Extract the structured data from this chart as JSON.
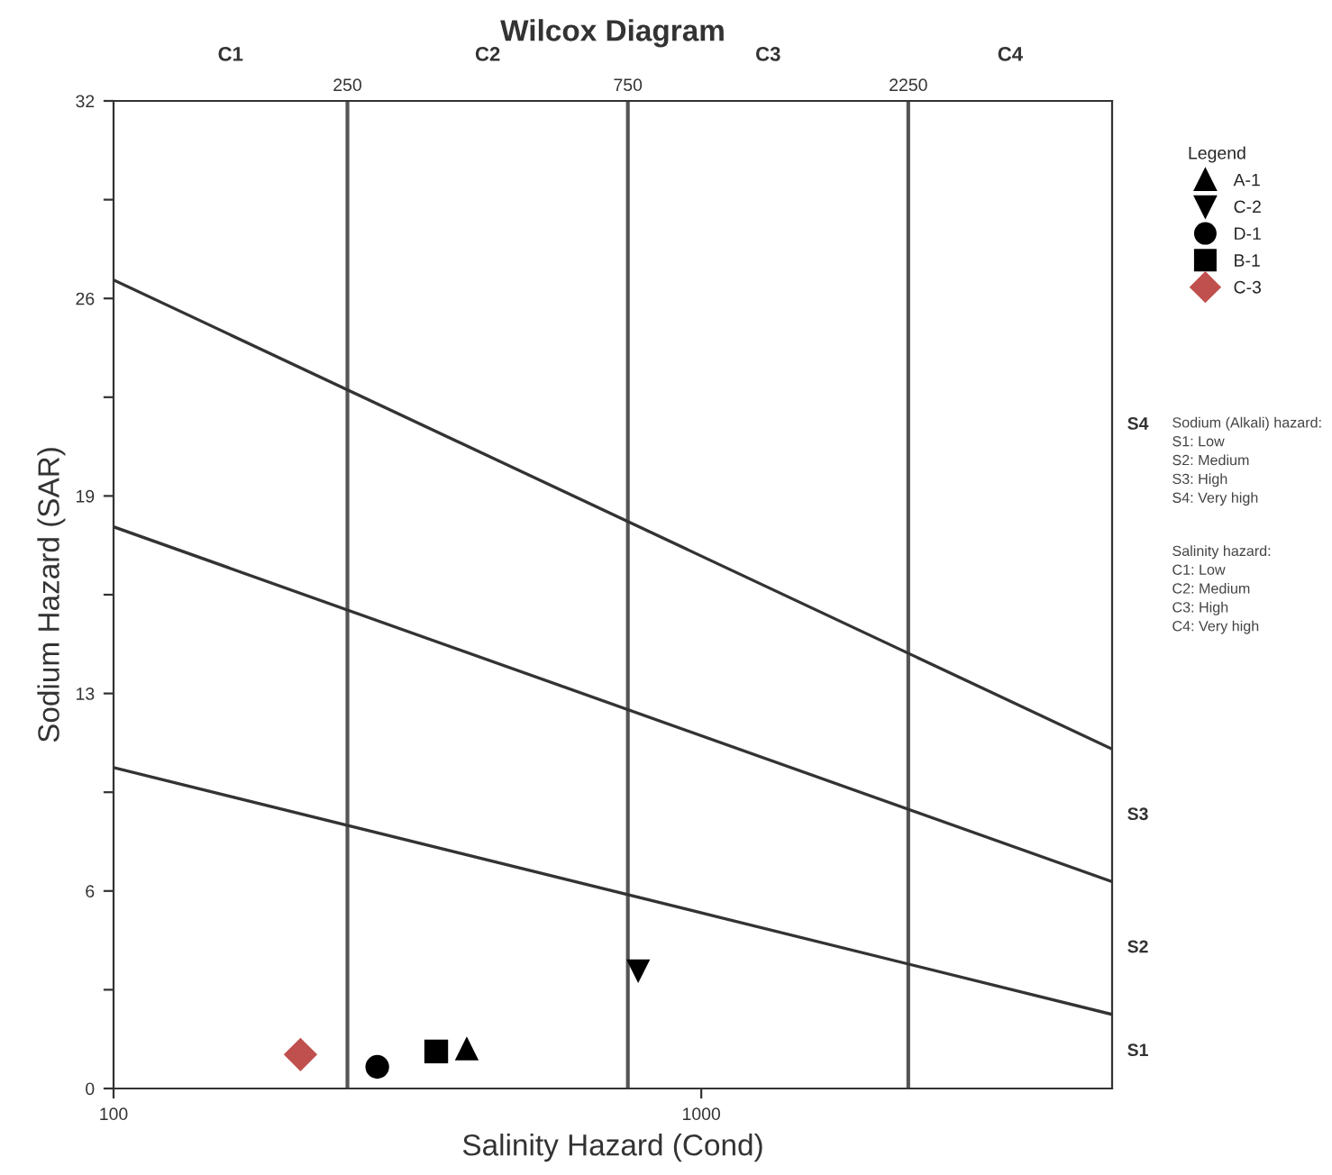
{
  "chart_data": {
    "type": "scatter",
    "title": "Wilcox Diagram",
    "xlabel": "Salinity Hazard (Cond)",
    "ylabel": "Sodium Hazard (SAR)",
    "legend_title": "Legend",
    "log": "x",
    "xlim": [
      100,
      5000
    ],
    "xticks": [
      100,
      1000
    ],
    "ylim": [
      0,
      32
    ],
    "yticks": [
      0,
      {
        "value": 3.2,
        "label": null
      },
      {
        "value": 6.4,
        "label": "6"
      },
      {
        "value": 9.6,
        "label": null
      },
      {
        "value": 12.8,
        "label": "13"
      },
      {
        "value": 16,
        "label": null
      },
      {
        "value": 19.2,
        "label": "19"
      },
      {
        "value": 22.4,
        "label": null
      },
      {
        "value": 25.6,
        "label": "26"
      },
      {
        "value": 28.8,
        "label": null
      },
      32
    ],
    "ref_lines": [
      {
        "axis": "x",
        "value": 250,
        "label": "250",
        "color": "#555555"
      },
      {
        "axis": "x",
        "value": 750,
        "label": "750",
        "color": "#555555"
      },
      {
        "axis": "x",
        "value": 2250,
        "label": "2250",
        "color": "#555555"
      }
    ],
    "series": [
      {
        "name": "A-1",
        "color": "#000000",
        "marker": "triangle",
        "x": [
          399
        ],
        "values": [
          1.3
        ]
      },
      {
        "name": "C-2",
        "color": "#000000",
        "marker": "triangle-down",
        "x": [
          781
        ],
        "values": [
          3.8
        ]
      },
      {
        "name": "D-1",
        "color": "#000000",
        "marker": "circle",
        "x": [
          281
        ],
        "values": [
          0.7
        ]
      },
      {
        "name": "B-1",
        "color": "#000000",
        "marker": "square",
        "x": [
          354
        ],
        "values": [
          1.2
        ]
      },
      {
        "name": "C-3",
        "color": "#c0504d",
        "marker": "diamond",
        "x": [
          208
        ],
        "values": [
          1.1
        ]
      },
      {
        "type": "line",
        "color": "#333333",
        "x": [
          100,
          5000
        ],
        "values": [
          10.4,
          2.4
        ]
      },
      {
        "type": "line",
        "color": "#333333",
        "x": [
          100,
          5000
        ],
        "values": [
          18.2,
          6.7
        ]
      },
      {
        "type": "line",
        "color": "#333333",
        "x": [
          100,
          5000
        ],
        "values": [
          26.2,
          11.0
        ]
      }
    ],
    "annotations": [
      "C1",
      "C2",
      "C3",
      "C4",
      "S1",
      "S2",
      "S3",
      "S4",
      "Sodium (Alkali) hazard:\nS1: Low\nS2: Medium\nS3: High\nS4: Very high",
      "Salinity hazard:\nC1: Low\nC2: Medium\nC3: High\nC4: Very high"
    ],
    "legend": "right",
    "grid": false
  }
}
